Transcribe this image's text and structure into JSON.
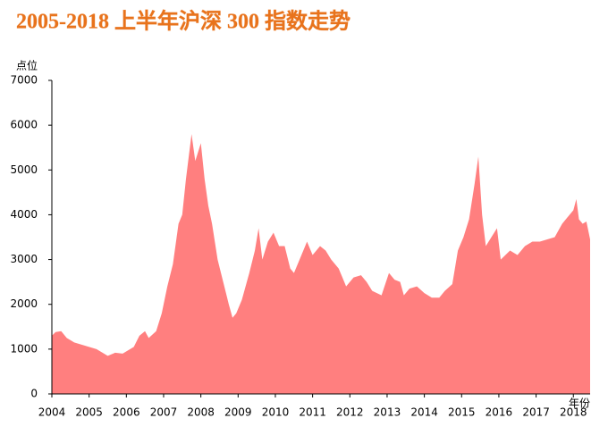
{
  "chart_data": {
    "type": "area",
    "title": "2005-2018 上半年沪深 300 指数走势",
    "y_label": "点位",
    "x_label": "年份",
    "color": "#ff7f7f",
    "x": [
      2004.0,
      2004.1,
      2004.25,
      2004.4,
      2004.6,
      2004.8,
      2005.0,
      2005.2,
      2005.4,
      2005.5,
      2005.7,
      2005.9,
      2006.0,
      2006.2,
      2006.35,
      2006.5,
      2006.6,
      2006.8,
      2006.95,
      2007.1,
      2007.25,
      2007.4,
      2007.5,
      2007.6,
      2007.75,
      2007.85,
      2008.0,
      2008.1,
      2008.2,
      2008.3,
      2008.45,
      2008.6,
      2008.75,
      2008.85,
      2008.95,
      2009.1,
      2009.3,
      2009.45,
      2009.55,
      2009.65,
      2009.8,
      2009.95,
      2010.1,
      2010.25,
      2010.4,
      2010.5,
      2010.65,
      2010.85,
      2011.0,
      2011.2,
      2011.35,
      2011.5,
      2011.7,
      2011.9,
      2012.1,
      2012.3,
      2012.45,
      2012.6,
      2012.85,
      2013.05,
      2013.2,
      2013.35,
      2013.45,
      2013.6,
      2013.8,
      2014.0,
      2014.2,
      2014.4,
      2014.55,
      2014.75,
      2014.9,
      2015.05,
      2015.2,
      2015.35,
      2015.45,
      2015.55,
      2015.65,
      2015.8,
      2015.95,
      2016.05,
      2016.3,
      2016.5,
      2016.7,
      2016.9,
      2017.1,
      2017.3,
      2017.5,
      2017.7,
      2017.85,
      2018.0,
      2018.08,
      2018.15,
      2018.25,
      2018.35,
      2018.45
    ],
    "values": [
      1300,
      1380,
      1400,
      1250,
      1150,
      1100,
      1050,
      1000,
      900,
      850,
      920,
      900,
      950,
      1050,
      1300,
      1400,
      1250,
      1400,
      1800,
      2400,
      2900,
      3800,
      4000,
      4800,
      5800,
      5200,
      5600,
      4800,
      4200,
      3800,
      3000,
      2500,
      2000,
      1700,
      1800,
      2100,
      2700,
      3200,
      3700,
      3000,
      3400,
      3600,
      3300,
      3300,
      2800,
      2700,
      3000,
      3400,
      3100,
      3300,
      3200,
      3000,
      2800,
      2400,
      2600,
      2650,
      2500,
      2300,
      2200,
      2700,
      2550,
      2500,
      2200,
      2350,
      2400,
      2250,
      2150,
      2150,
      2300,
      2450,
      3200,
      3500,
      3900,
      4700,
      5300,
      4000,
      3300,
      3500,
      3700,
      3000,
      3200,
      3100,
      3300,
      3400,
      3400,
      3450,
      3500,
      3800,
      3950,
      4100,
      4350,
      3900,
      3800,
      3850,
      3450
    ],
    "xlim": [
      2004,
      2018.45
    ],
    "xticks": [
      2004,
      2005,
      2006,
      2007,
      2008,
      2009,
      2010,
      2011,
      2012,
      2013,
      2014,
      2015,
      2016,
      2017,
      2018
    ],
    "ylim": [
      0,
      7000
    ],
    "yticks": [
      0,
      1000,
      2000,
      3000,
      4000,
      5000,
      6000,
      7000
    ]
  }
}
